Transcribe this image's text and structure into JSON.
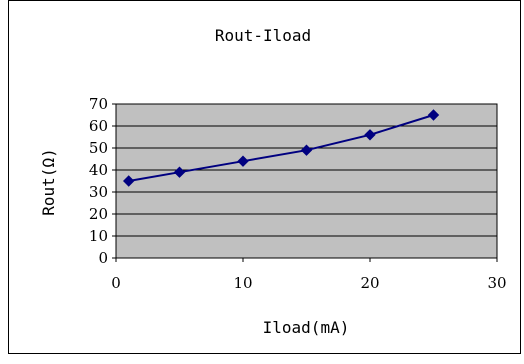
{
  "chart_data": {
    "type": "line",
    "title": "Rout-Iload",
    "xlabel": "Iload(mA)",
    "ylabel": "Rout(Ω)",
    "xlim": [
      0,
      30
    ],
    "ylim": [
      0,
      70
    ],
    "x_ticks": [
      0,
      10,
      20,
      30
    ],
    "y_ticks": [
      0,
      10,
      20,
      30,
      40,
      50,
      60,
      70
    ],
    "grid": "horizontal",
    "legend": "none",
    "series": [
      {
        "x": [
          1,
          5,
          10,
          15,
          20,
          25
        ],
        "y": [
          35,
          39,
          44,
          49,
          56,
          65
        ],
        "color": "#000080",
        "marker": "diamond"
      }
    ],
    "plot_background": "#c0c0c0"
  }
}
